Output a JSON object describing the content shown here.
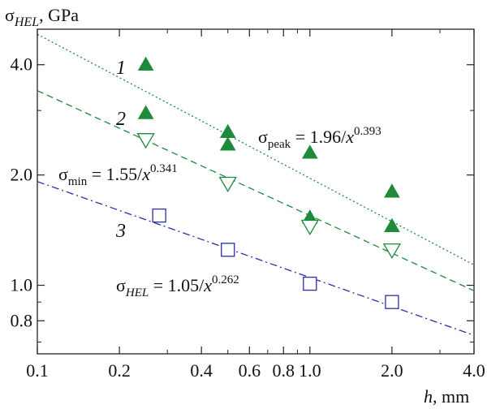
{
  "chart_data": {
    "type": "scatter",
    "xscale": "log",
    "yscale": "log",
    "xlim": [
      0.1,
      4.0
    ],
    "ylim": [
      0.65,
      5.0
    ],
    "xlabel": {
      "italic": "h",
      "rest": ", mm"
    },
    "ylabel": {
      "main": "σ",
      "sub": "HEL",
      "rest": ", GPa"
    },
    "x_ticks": [
      {
        "value": 0.1,
        "label": "0.1"
      },
      {
        "value": 0.2,
        "label": "0.2"
      },
      {
        "value": 0.4,
        "label": "0.4"
      },
      {
        "value": 0.6,
        "label": "0.6"
      },
      {
        "value": 0.8,
        "label": "0.8"
      },
      {
        "value": 1.0,
        "label": "1.0"
      },
      {
        "value": 2.0,
        "label": "2.0"
      },
      {
        "value": 4.0,
        "label": "4.0"
      }
    ],
    "y_ticks": [
      {
        "value": 0.8,
        "label": "0.8"
      },
      {
        "value": 1.0,
        "label": "1.0"
      },
      {
        "value": 2.0,
        "label": "2.0"
      },
      {
        "value": 4.0,
        "label": "4.0"
      }
    ],
    "series": [
      {
        "label": "1",
        "marker": "triangle-up-filled",
        "color": "#1f8a3b",
        "points": [
          [
            0.25,
            4.0
          ],
          [
            0.25,
            2.95
          ],
          [
            0.5,
            2.62
          ],
          [
            0.5,
            2.42
          ],
          [
            1.0,
            2.3
          ],
          [
            1.0,
            1.53
          ],
          [
            2.0,
            1.8
          ],
          [
            2.0,
            1.45
          ]
        ]
      },
      {
        "label": "2",
        "marker": "triangle-down-open",
        "color": "#1f8a3b",
        "points": [
          [
            0.25,
            2.5
          ],
          [
            0.5,
            1.9
          ],
          [
            1.0,
            1.45
          ],
          [
            2.0,
            1.25
          ]
        ]
      },
      {
        "label": "3",
        "marker": "square-open",
        "color": "#2b2fa8",
        "points": [
          [
            0.28,
            1.55
          ],
          [
            0.5,
            1.25
          ],
          [
            1.0,
            1.01
          ],
          [
            2.0,
            0.9
          ]
        ]
      }
    ],
    "fits": [
      {
        "name": "σpeak",
        "coef": 1.96,
        "exp": 0.393,
        "style": "dotted",
        "color": "#1f8a3b",
        "text": {
          "sym": "σ",
          "sub": "peak",
          "mid": " = 1.96/",
          "var": "x",
          "sup": "0.393"
        }
      },
      {
        "name": "σmin",
        "coef": 1.55,
        "exp": 0.341,
        "style": "dashed",
        "color": "#1f8a3b",
        "text": {
          "sym": "σ",
          "sub": "min",
          "mid": " = 1.55/",
          "var": "x",
          "sup": "0.341"
        }
      },
      {
        "name": "σHEL",
        "coef": 1.05,
        "exp": 0.262,
        "style": "dashdot",
        "color": "#2b2fa8",
        "text": {
          "sym": "σ",
          "sub": "HEL",
          "mid": " = 1.05/",
          "var": "x",
          "sup": "0.262"
        }
      }
    ]
  }
}
